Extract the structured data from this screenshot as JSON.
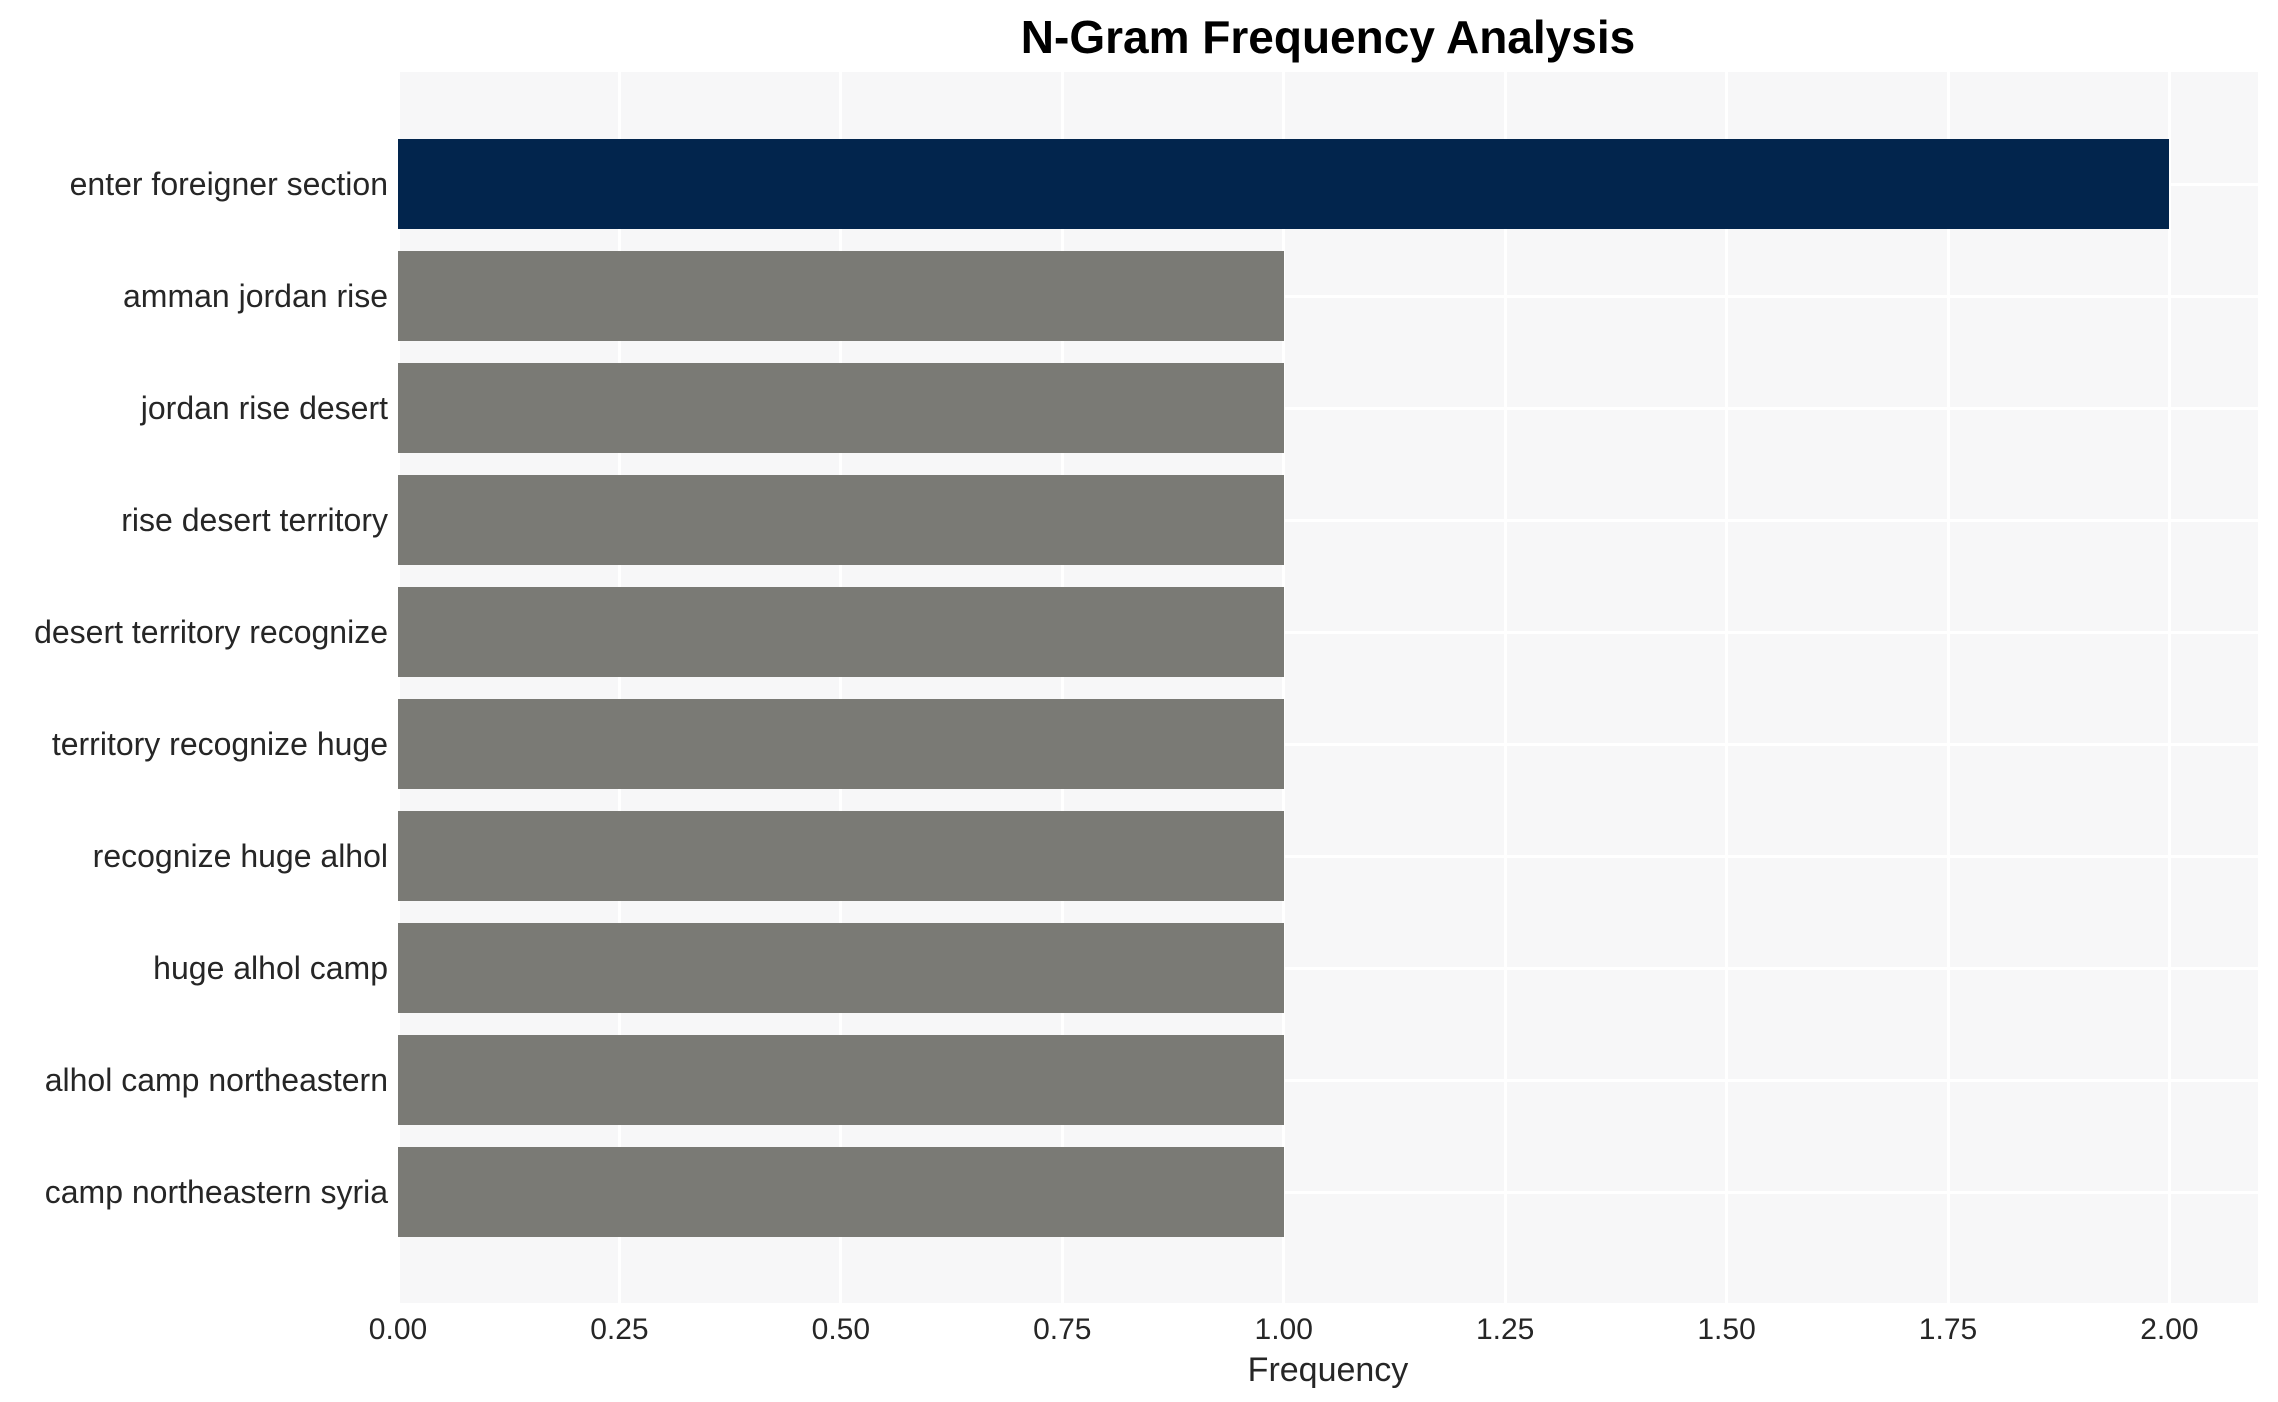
{
  "chart_data": {
    "type": "bar",
    "orientation": "horizontal",
    "title": "N-Gram Frequency Analysis",
    "xlabel": "Frequency",
    "ylabel": "",
    "xlim": [
      0,
      2.1
    ],
    "grid": true,
    "legend": false,
    "plot_background": "#f7f7f8",
    "gridline_color": "#ffffff",
    "categories": [
      "enter foreigner section",
      "amman jordan rise",
      "jordan rise desert",
      "rise desert territory",
      "desert territory recognize",
      "territory recognize huge",
      "recognize huge alhol",
      "huge alhol camp",
      "alhol camp northeastern",
      "camp northeastern syria"
    ],
    "values": [
      2.0,
      1.0,
      1.0,
      1.0,
      1.0,
      1.0,
      1.0,
      1.0,
      1.0,
      1.0
    ],
    "bar_colors": [
      "#02254d",
      "#7a7a75",
      "#7a7a75",
      "#7a7a75",
      "#7a7a75",
      "#7a7a75",
      "#7a7a75",
      "#7a7a75",
      "#7a7a75",
      "#7a7a75"
    ],
    "colors": {
      "highlight_bar": "#02254d",
      "default_bar": "#7a7a75",
      "tick_text": "#262626",
      "title_text": "#000000"
    },
    "xticks": [
      {
        "value": 0.0,
        "label": "0.00"
      },
      {
        "value": 0.25,
        "label": "0.25"
      },
      {
        "value": 0.5,
        "label": "0.50"
      },
      {
        "value": 0.75,
        "label": "0.75"
      },
      {
        "value": 1.0,
        "label": "1.00"
      },
      {
        "value": 1.25,
        "label": "1.25"
      },
      {
        "value": 1.5,
        "label": "1.50"
      },
      {
        "value": 1.75,
        "label": "1.75"
      },
      {
        "value": 2.0,
        "label": "2.00"
      }
    ]
  }
}
